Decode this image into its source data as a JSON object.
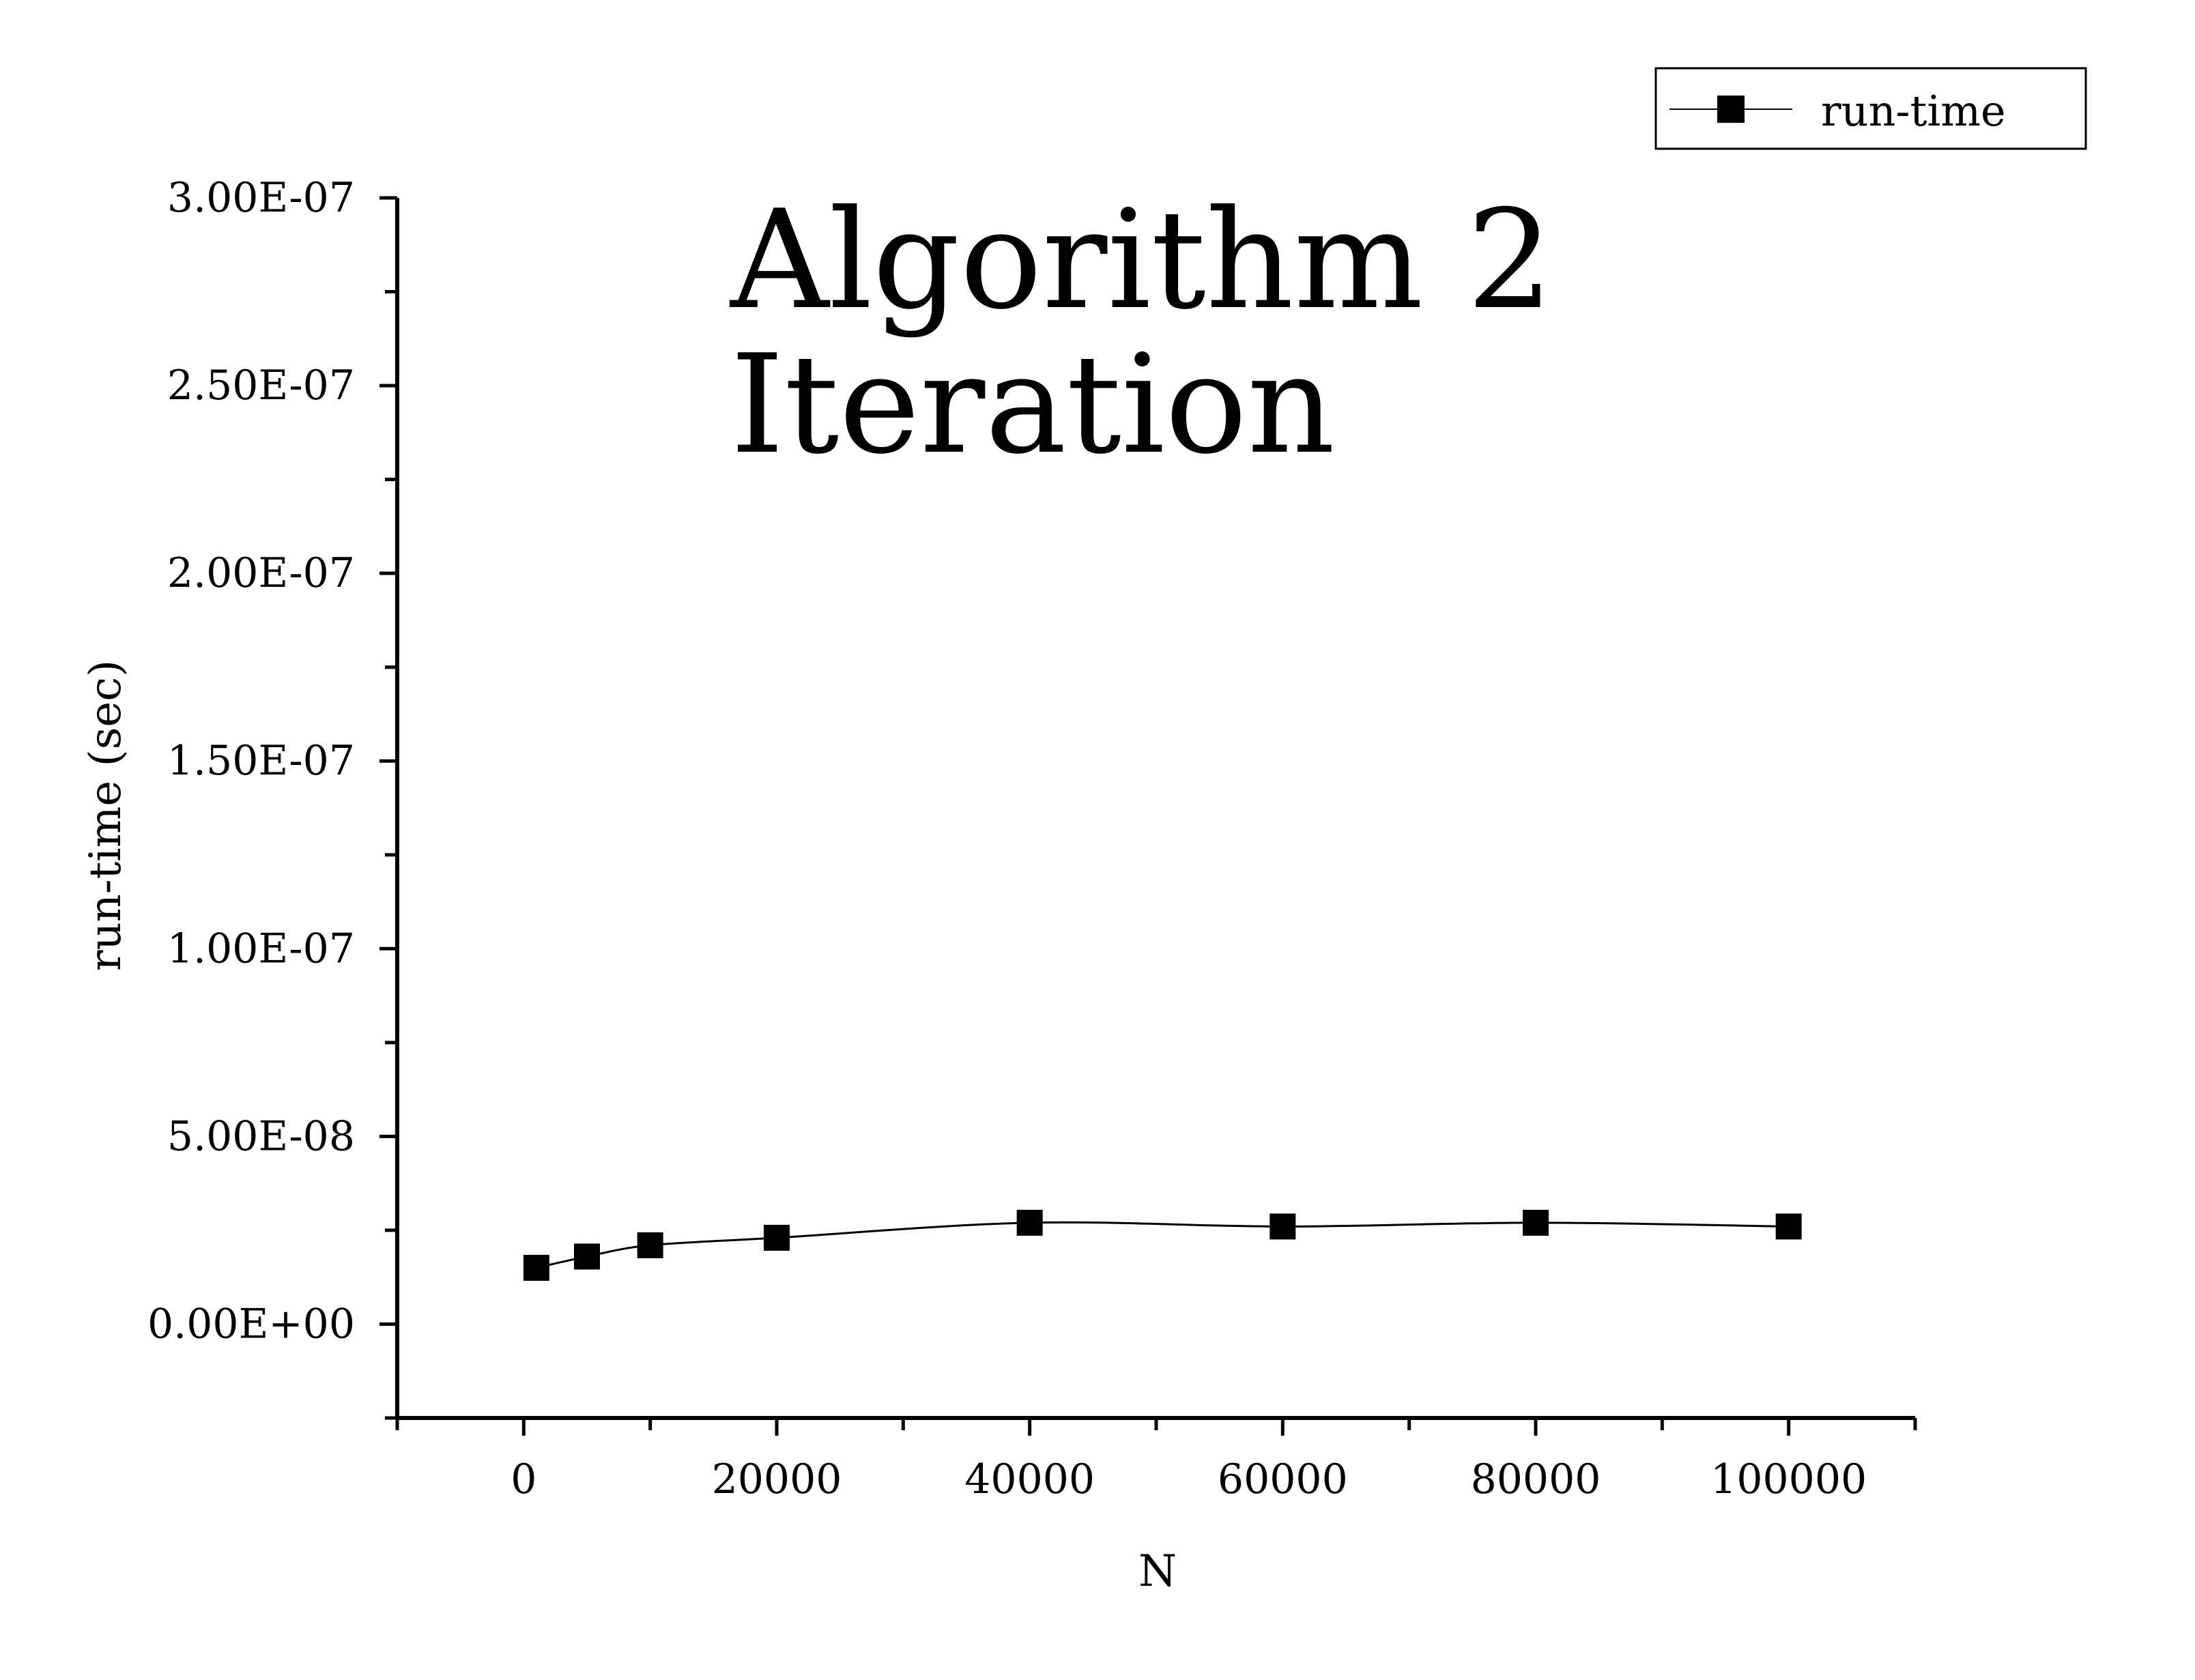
{
  "chart_data": {
    "type": "line",
    "title_lines": [
      "Algorithm 2",
      "Iteration"
    ],
    "xlabel": "N",
    "ylabel": "run-time (sec)",
    "xlim": [
      -10000,
      110000
    ],
    "ylim": [
      -2.5e-08,
      3e-07
    ],
    "x_ticks": [
      0,
      20000,
      40000,
      60000,
      80000,
      100000
    ],
    "x_tick_labels": [
      "0",
      "20000",
      "40000",
      "60000",
      "80000",
      "100000"
    ],
    "y_ticks": [
      0,
      5e-08,
      1e-07,
      1.5e-07,
      2e-07,
      2.5e-07,
      3e-07
    ],
    "y_tick_labels": [
      "0.00E+00",
      "5.00E-08",
      "1.00E-07",
      "1.50E-07",
      "2.00E-07",
      "2.50E-07",
      "3.00E-07"
    ],
    "grid": false,
    "legend_position": "top-right",
    "series": [
      {
        "name": "run-time",
        "marker": "square",
        "color": "#000000",
        "x": [
          1000,
          5000,
          10000,
          20000,
          40000,
          60000,
          80000,
          100000
        ],
        "y": [
          1.5e-08,
          1.8e-08,
          2.1e-08,
          2.3e-08,
          2.7e-08,
          2.6e-08,
          2.7e-08,
          2.6e-08
        ]
      }
    ]
  }
}
